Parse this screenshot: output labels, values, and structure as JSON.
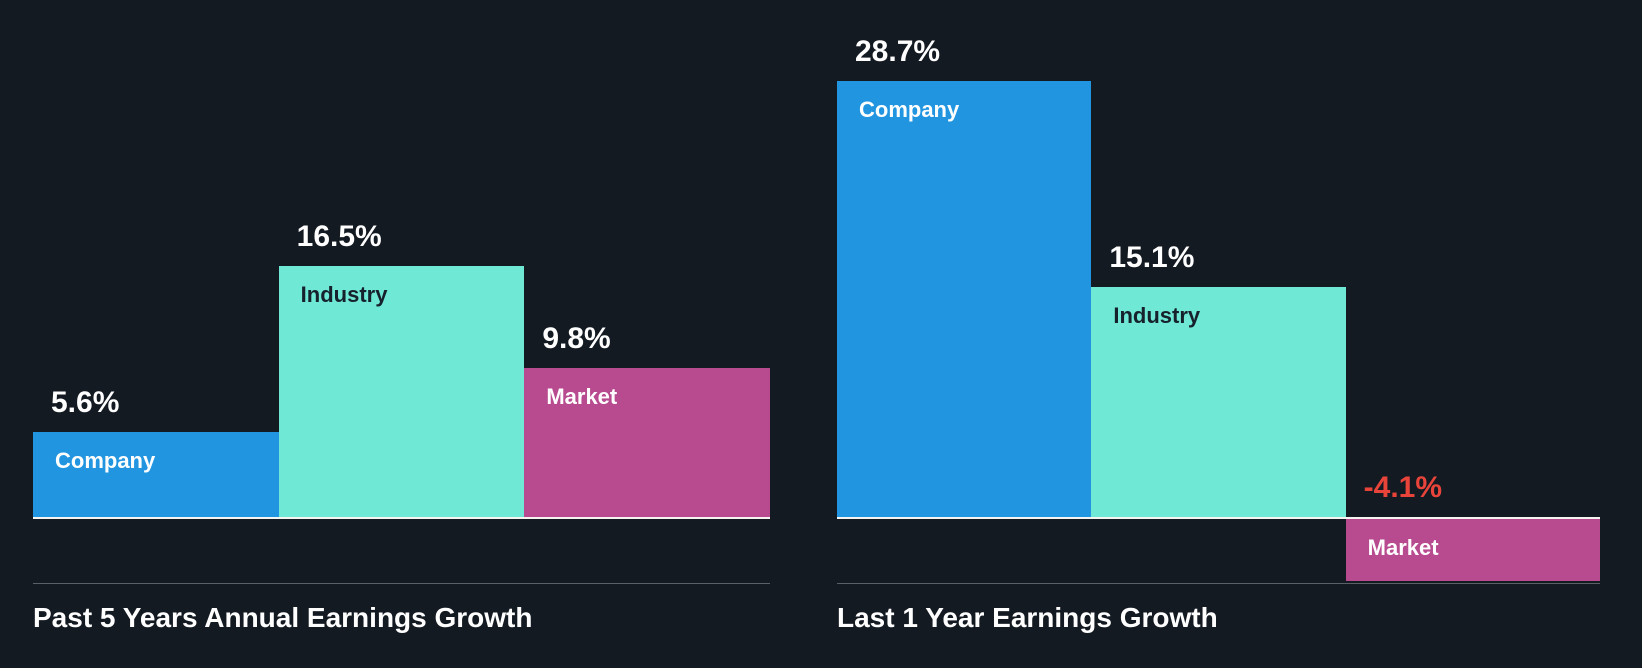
{
  "colors": {
    "background": "#141a22",
    "company_bar": "#2295e1",
    "industry_bar": "#6fe8d5",
    "market_bar": "#b84b8f",
    "label_on_company": "#ffffff",
    "label_on_industry": "#16212c",
    "label_on_market": "#ffffff",
    "value_label": "#ffffff",
    "negative_value": "#e8443a",
    "zero_line": "#f5f4f1",
    "axis_line": "#5b5f66",
    "title": "#ffffff"
  },
  "chart_data": [
    {
      "type": "bar",
      "title": "Past 5 Years Annual Earnings Growth",
      "categories": [
        "Company",
        "Industry",
        "Market"
      ],
      "values": [
        5.6,
        16.5,
        9.8
      ],
      "value_labels": [
        "5.6%",
        "16.5%",
        "9.8%"
      ],
      "xlabel": "",
      "ylabel": "",
      "ylim": [
        0,
        30
      ],
      "grid": false,
      "legend": "none",
      "value_label_position": "above-bar",
      "category_label_position": "inside-bar-top"
    },
    {
      "type": "bar",
      "title": "Last 1 Year Earnings Growth",
      "categories": [
        "Company",
        "Industry",
        "Market"
      ],
      "values": [
        28.7,
        15.1,
        -4.1
      ],
      "value_labels": [
        "28.7%",
        "15.1%",
        "-4.1%"
      ],
      "xlabel": "",
      "ylabel": "",
      "ylim": [
        -5,
        30
      ],
      "grid": false,
      "legend": "none",
      "value_label_position": "above-bar",
      "category_label_position": "inside-bar-top"
    }
  ]
}
